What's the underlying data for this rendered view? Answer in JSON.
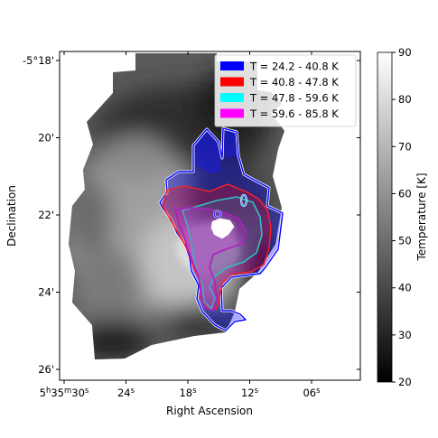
{
  "chart_data": {
    "type": "heatmap",
    "title": "",
    "xlabel": "Right Ascension",
    "ylabel": "Declination",
    "x_ticks": [
      {
        "label": "5h35m30s",
        "ra_sec": 30
      },
      {
        "label": "24s",
        "ra_sec": 24
      },
      {
        "label": "18s",
        "ra_sec": 18
      },
      {
        "label": "12s",
        "ra_sec": 12
      },
      {
        "label": "06s",
        "ra_sec": 6
      }
    ],
    "y_ticks": [
      {
        "label": "-5°18'",
        "dec_arcmin": 18
      },
      {
        "label": "20'",
        "dec_arcmin": 20
      },
      {
        "label": "22'",
        "dec_arcmin": 22
      },
      {
        "label": "24'",
        "dec_arcmin": 24
      },
      {
        "label": "26'",
        "dec_arcmin": 26
      }
    ],
    "colorbar": {
      "label": "Temperature [K]",
      "colormap": "gray",
      "vmin": 20,
      "vmax": 90,
      "ticks": [
        20,
        30,
        40,
        50,
        60,
        70,
        80,
        90
      ]
    },
    "legend_position": "top-right",
    "series": [
      {
        "name": "T = 24.2 - 40.8 K",
        "color": "#0000ff"
      },
      {
        "name": "T = 40.8 - 47.8 K",
        "color": "#ff0000"
      },
      {
        "name": "T = 47.8 - 59.6 K",
        "color": "#00ffff"
      },
      {
        "name": "T = 59.6 - 85.8 K",
        "color": "#ff00ff"
      }
    ]
  }
}
